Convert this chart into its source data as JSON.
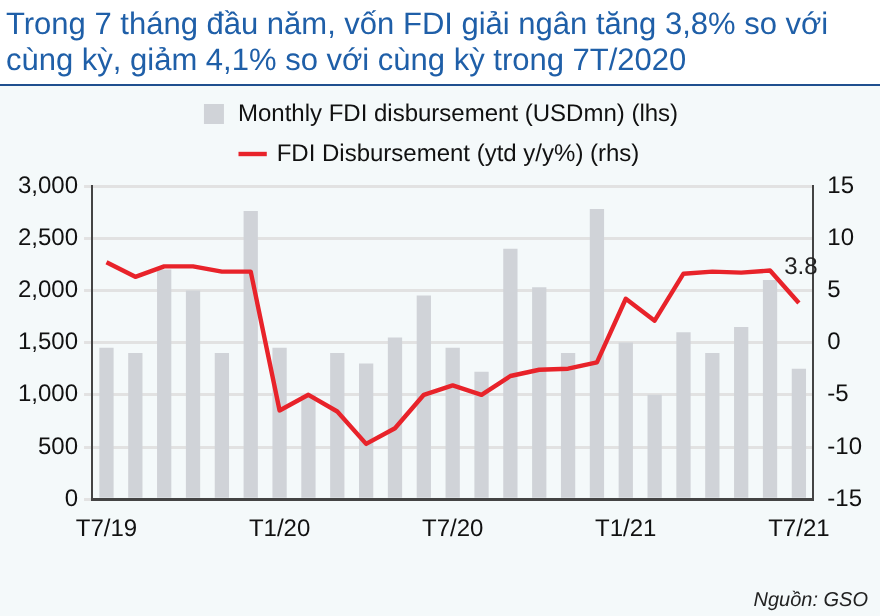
{
  "chart_data": {
    "type": "bar",
    "title": "Trong 7 tháng đầu năm, vốn FDI giải ngân tăng 3,8% so với cùng kỳ, giảm 4,1% so với cùng kỳ trong 7T/2020",
    "categories": [
      "T7/19",
      null,
      null,
      null,
      null,
      null,
      "T1/20",
      null,
      null,
      null,
      null,
      null,
      "T7/20",
      null,
      null,
      null,
      null,
      null,
      "T1/21",
      null,
      null,
      null,
      null,
      null,
      "T7/21"
    ],
    "series": [
      {
        "name": "Monthly FDI disbursement (USDmn) (lhs)",
        "type": "bar",
        "color": "#d0d3d8",
        "values": [
          1450,
          1400,
          2200,
          2000,
          1400,
          2760,
          1450,
          1000,
          1400,
          1300,
          1550,
          1950,
          1450,
          1220,
          2400,
          2030,
          1400,
          2780,
          1500,
          1000,
          1600,
          1400,
          1650,
          2100,
          1250
        ]
      },
      {
        "name": "FDI Disbursement (ytd y/y%) (rhs)",
        "type": "line",
        "axis": "y2",
        "color": "#e8232a",
        "values": [
          7.7,
          6.3,
          7.3,
          7.3,
          6.8,
          6.8,
          -6.5,
          -5.0,
          -6.6,
          -9.7,
          -8.2,
          -5.0,
          -4.1,
          -5.0,
          -3.2,
          -2.6,
          -2.5,
          -1.9,
          4.2,
          2.1,
          6.6,
          6.8,
          6.7,
          6.9,
          3.8
        ],
        "value_labels": [
          null,
          null,
          null,
          null,
          null,
          null,
          null,
          null,
          null,
          null,
          null,
          null,
          null,
          null,
          null,
          null,
          null,
          null,
          null,
          null,
          null,
          null,
          null,
          null,
          "3.8"
        ]
      }
    ],
    "ylim": [
      0,
      3000
    ],
    "yticks": [
      0,
      500,
      {
        "value": 1000,
        "label": "1,000"
      },
      {
        "value": 1500,
        "label": "1,500"
      },
      {
        "value": 2000,
        "label": "2,000"
      },
      {
        "value": 2500,
        "label": "2,500"
      },
      {
        "value": 3000,
        "label": "3,000"
      }
    ],
    "y2lim": [
      -15,
      15
    ],
    "y2ticks": [
      -15,
      -10,
      -5,
      0,
      5,
      10,
      15
    ],
    "grid": "y",
    "legend": "top",
    "marker": "none",
    "line_style": "solid",
    "annotations": [
      "Nguồn: GSO"
    ]
  }
}
